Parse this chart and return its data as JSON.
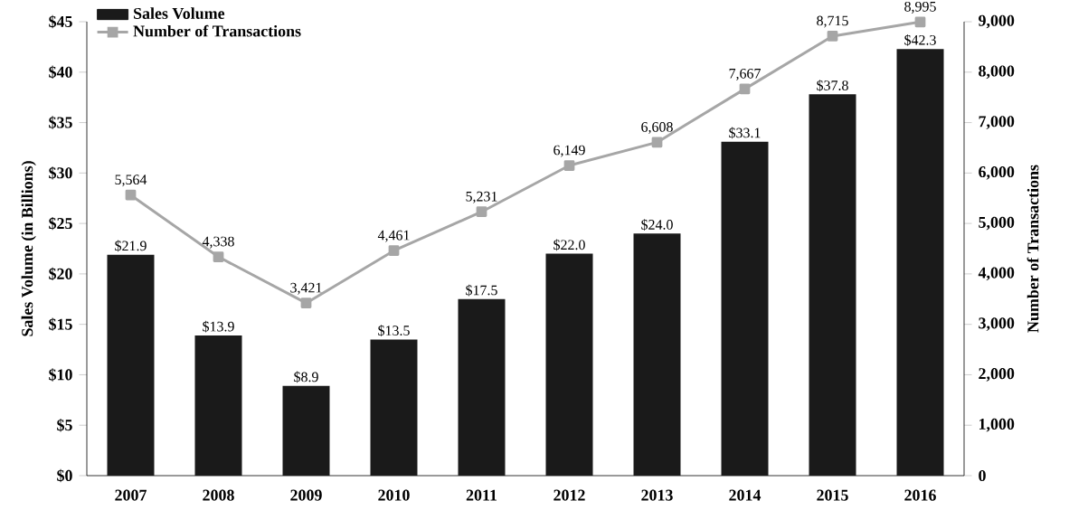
{
  "chart_data": {
    "type": "bar",
    "categories": [
      "2007",
      "2008",
      "2009",
      "2010",
      "2011",
      "2012",
      "2013",
      "2014",
      "2015",
      "2016"
    ],
    "series": [
      {
        "name": "Sales Volume",
        "color": "#1a1a1a",
        "values": [
          21.9,
          13.9,
          8.9,
          13.5,
          17.5,
          22.0,
          24.0,
          33.1,
          37.8,
          42.3
        ],
        "value_labels": [
          "$21.9",
          "$13.9",
          "$8.9",
          "$13.5",
          "$17.5",
          "$22.0",
          "$24.0",
          "$33.1",
          "$37.8",
          "$42.3"
        ]
      },
      {
        "name": "Number of Transactions",
        "type": "line",
        "axis": "y2",
        "color": "#a6a6a6",
        "marker": "square",
        "values": [
          5564,
          4338,
          3421,
          4461,
          5231,
          6149,
          6608,
          7667,
          8715,
          8995
        ],
        "value_labels": [
          "5,564",
          "4,338",
          "3,421",
          "4,461",
          "5,231",
          "6,149",
          "6,608",
          "7,667",
          "8,715",
          "8,995"
        ]
      }
    ],
    "ylabel": "Sales Volume (in Billions)",
    "y2label": "Number of Transactions",
    "ylim": [
      0,
      45
    ],
    "yticks": [
      {
        "value": 0,
        "label": "$0"
      },
      {
        "value": 5,
        "label": "$5"
      },
      {
        "value": 10,
        "label": "$10"
      },
      {
        "value": 15,
        "label": "$15"
      },
      {
        "value": 20,
        "label": "$20"
      },
      {
        "value": 25,
        "label": "$25"
      },
      {
        "value": 30,
        "label": "$30"
      },
      {
        "value": 35,
        "label": "$35"
      },
      {
        "value": 40,
        "label": "$40"
      },
      {
        "value": 45,
        "label": "$45"
      }
    ],
    "y2lim": [
      0,
      9000
    ],
    "y2ticks": [
      0,
      {
        "value": 1000,
        "label": "1,000"
      },
      {
        "value": 2000,
        "label": "2,000"
      },
      {
        "value": 3000,
        "label": "3,000"
      },
      {
        "value": 4000,
        "label": "4,000"
      },
      {
        "value": 5000,
        "label": "5,000"
      },
      {
        "value": 6000,
        "label": "6,000"
      },
      {
        "value": 7000,
        "label": "7,000"
      },
      {
        "value": 8000,
        "label": "8,000"
      },
      {
        "value": 9000,
        "label": "9,000"
      }
    ],
    "legend": "top left"
  }
}
